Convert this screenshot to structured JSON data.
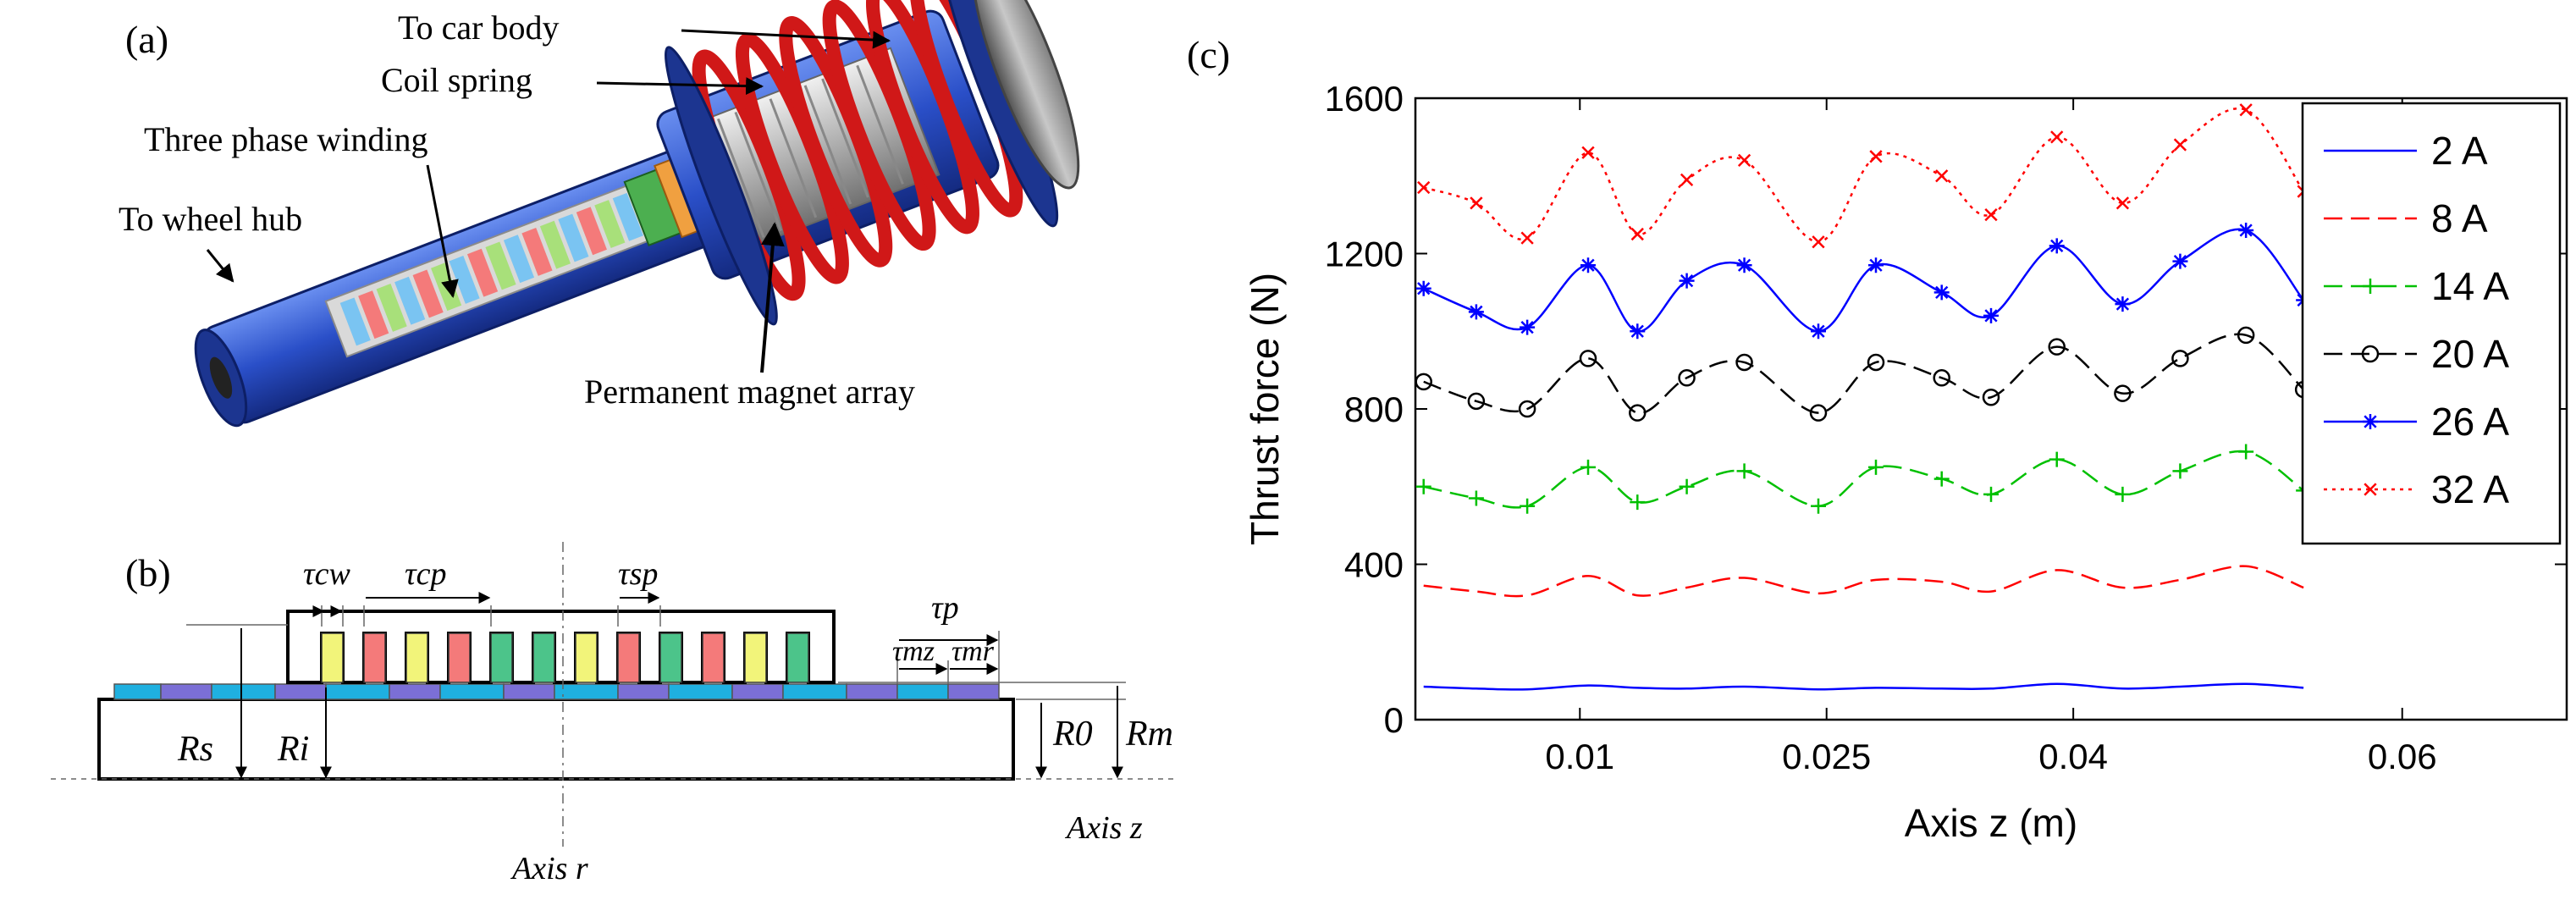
{
  "panel_a": {
    "label": "(a)",
    "callouts": {
      "car_body": "To car body",
      "coil_spring": "Coil spring",
      "winding": "Three phase winding",
      "wheel_hub": "To wheel hub",
      "magnets": "Permanent magnet array"
    }
  },
  "panel_b": {
    "label": "(b)",
    "symbols": {
      "tau_cw": "τcw",
      "tau_cp": "τcp",
      "tau_sp": "τsp",
      "tau_p": "τp",
      "tau_mz": "τmz",
      "tau_mr": "τmr",
      "Rs": "Rs",
      "Ri": "Ri",
      "R0": "R0",
      "Rm": "Rm"
    },
    "axis_r": "Axis r",
    "axis_z": "Axis z",
    "coil_colors": [
      "#f2f47a",
      "#f47a7a",
      "#4cc48a"
    ],
    "magnet_colors": [
      "#1fb0e0",
      "#7b6fd6"
    ]
  },
  "panel_c": {
    "label": "(c)"
  },
  "chart_data": {
    "type": "line",
    "xlabel": "Axis z (m)",
    "ylabel": "Thrust force (N)",
    "xlim": [
      0,
      0.07
    ],
    "ylim": [
      0,
      1600
    ],
    "xticks": [
      0.01,
      0.025,
      0.04,
      0.06
    ],
    "xtick_labels": [
      "0.01",
      "0.025",
      "0.04",
      "0.06"
    ],
    "yticks": [
      0,
      400,
      800,
      1200,
      1600
    ],
    "ytick_labels": [
      "0",
      "400",
      "800",
      "1200",
      "1600"
    ],
    "grid": false,
    "legend_position": "top-right",
    "x": [
      0.0005,
      0.0037,
      0.0068,
      0.0105,
      0.0135,
      0.0165,
      0.02,
      0.0245,
      0.028,
      0.032,
      0.035,
      0.039,
      0.043,
      0.0465,
      0.0505,
      0.054
    ],
    "series": [
      {
        "name": "2 A",
        "color": "#0000ff",
        "dash": "solid",
        "marker": "none",
        "values": [
          85,
          80,
          78,
          88,
          82,
          80,
          85,
          78,
          82,
          80,
          80,
          92,
          80,
          85,
          92,
          82
        ]
      },
      {
        "name": "8 A",
        "color": "#ff0000",
        "dash": "dashed",
        "marker": "none",
        "values": [
          345,
          330,
          320,
          370,
          320,
          340,
          365,
          325,
          360,
          355,
          330,
          385,
          340,
          360,
          395,
          340
        ]
      },
      {
        "name": "14 A",
        "color": "#00c000",
        "dash": "dashed",
        "marker": "plus",
        "values": [
          600,
          570,
          550,
          650,
          560,
          600,
          640,
          550,
          650,
          620,
          580,
          670,
          580,
          640,
          690,
          590
        ]
      },
      {
        "name": "20 A",
        "color": "#000000",
        "dash": "dashed",
        "marker": "circle",
        "values": [
          870,
          820,
          800,
          930,
          790,
          880,
          920,
          790,
          920,
          880,
          830,
          960,
          840,
          930,
          990,
          850
        ]
      },
      {
        "name": "26 A",
        "color": "#0000ff",
        "dash": "solid",
        "marker": "star",
        "values": [
          1110,
          1050,
          1010,
          1170,
          1000,
          1130,
          1170,
          1000,
          1170,
          1100,
          1040,
          1220,
          1070,
          1180,
          1260,
          1080
        ]
      },
      {
        "name": "32 A",
        "color": "#ff0000",
        "dash": "dotted",
        "marker": "x",
        "values": [
          1370,
          1330,
          1240,
          1460,
          1250,
          1390,
          1440,
          1230,
          1450,
          1400,
          1300,
          1500,
          1330,
          1480,
          1570,
          1360
        ]
      }
    ]
  }
}
